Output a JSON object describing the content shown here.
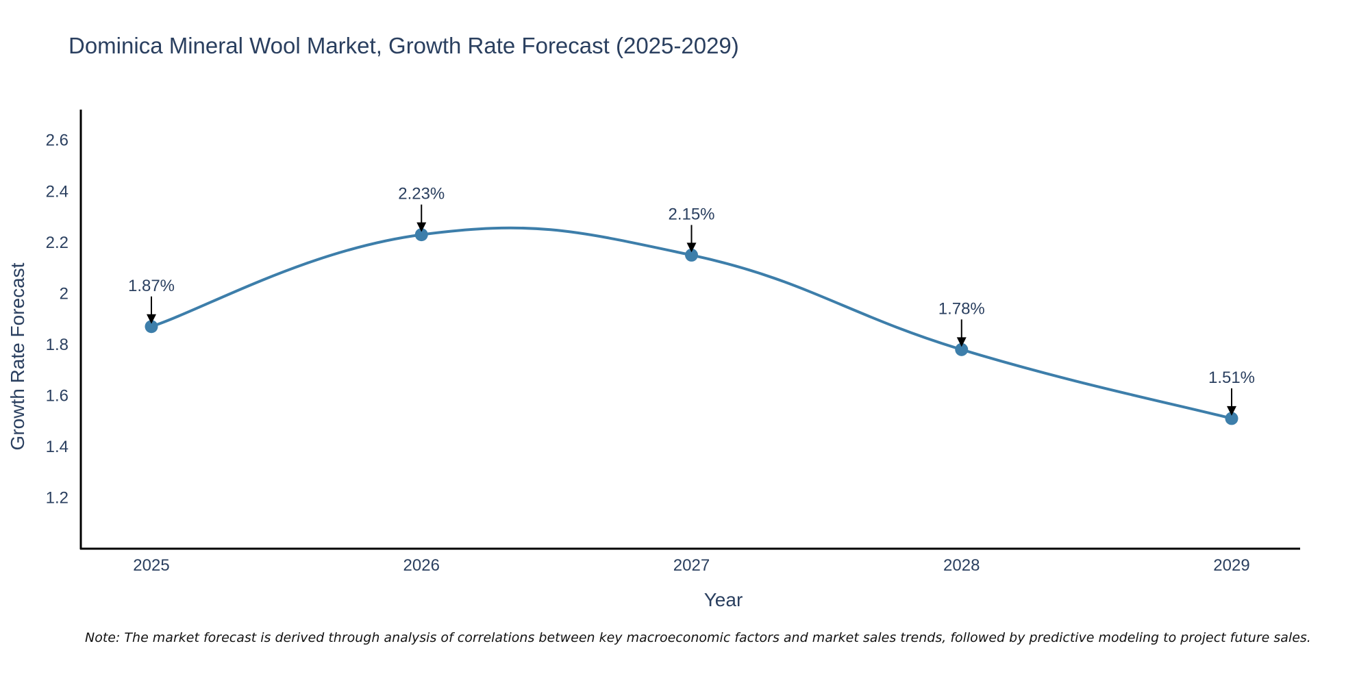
{
  "chart_data": {
    "type": "line",
    "title": "Dominica Mineral Wool Market, Growth Rate Forecast (2025-2029)",
    "xlabel": "Year",
    "ylabel": "Growth Rate Forecast",
    "categories": [
      "2025",
      "2026",
      "2027",
      "2028",
      "2029"
    ],
    "series": [
      {
        "name": "Growth Rate Forecast",
        "values": [
          1.87,
          2.23,
          2.15,
          1.78,
          1.51
        ],
        "labels": [
          "1.87%",
          "2.23%",
          "2.15%",
          "1.78%",
          "1.51%"
        ]
      }
    ],
    "ylim": [
      1.0,
      2.72
    ],
    "yticks": [
      1.2,
      1.4,
      1.6,
      1.8,
      2,
      2.2,
      2.4,
      2.6
    ],
    "ytick_labels": [
      "1.2",
      "1.4",
      "1.6",
      "1.8",
      "2",
      "2.2",
      "2.4",
      "2.6"
    ],
    "line_color": "#3d7eaa",
    "marker_color": "#3d7eaa",
    "grid": false
  },
  "note": "Note: The market forecast is derived through analysis of correlations between key macroeconomic factors and market sales trends, followed by predictive modeling to project future sales."
}
